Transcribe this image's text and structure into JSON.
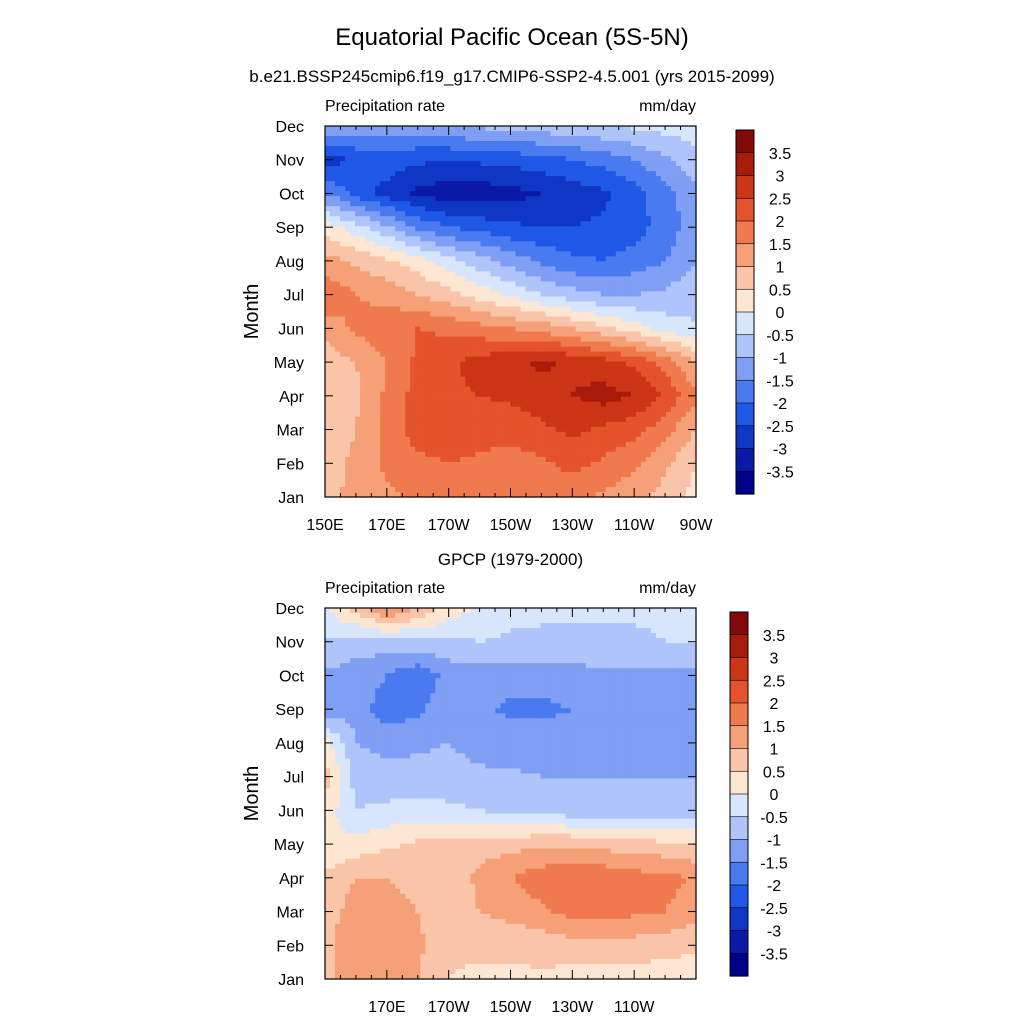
{
  "figure": {
    "title": "Equatorial Pacific Ocean (5S-5N)",
    "subtitle": "b.e21.BSSP245cmip6.f19_g17.CMIP6-SSP2-4.5.001 (yrs 2015-2099)"
  },
  "palette": [
    "#00008b",
    "#0a1aa6",
    "#0f36c4",
    "#1f58e6",
    "#4a7af0",
    "#7f9ff5",
    "#afc4fa",
    "#d8e6fd",
    "#fde6d2",
    "#f9c4a8",
    "#f5a077",
    "#f07a4d",
    "#e4532b",
    "#cc3515",
    "#a81b0a",
    "#830808"
  ],
  "colorbar_labels": [
    "3.5",
    "3",
    "2.5",
    "2",
    "1.5",
    "1",
    "0.5",
    "0",
    "-0.5",
    "-1",
    "-1.5",
    "-2",
    "-2.5",
    "-3",
    "-3.5"
  ],
  "chart_data": [
    {
      "type": "heatmap",
      "name": "model",
      "title": "",
      "left_label": "Precipitation rate",
      "right_label": "mm/day",
      "ylabel": "Month",
      "x": [
        150,
        160,
        170,
        180,
        190,
        200,
        210,
        220,
        230,
        240,
        250,
        260,
        270
      ],
      "x_ticks": [
        {
          "v": 150,
          "label": "150E"
        },
        {
          "v": 170,
          "label": "170E"
        },
        {
          "v": 190,
          "label": "170W"
        },
        {
          "v": 210,
          "label": "150W"
        },
        {
          "v": 230,
          "label": "130W"
        },
        {
          "v": 250,
          "label": "110W"
        },
        {
          "v": 270,
          "label": "90W"
        }
      ],
      "y_ticks": [
        "Jan",
        "Feb",
        "Mar",
        "Apr",
        "May",
        "Jun",
        "Jul",
        "Aug",
        "Sep",
        "Oct",
        "Nov",
        "Dec"
      ],
      "levels": [
        -3.5,
        -3,
        -2.5,
        -2,
        -1.5,
        -1,
        -0.5,
        0,
        0.5,
        1,
        1.5,
        2,
        2.5,
        3,
        3.5
      ],
      "z": [
        [
          0.9,
          1.1,
          1.4,
          1.6,
          1.7,
          1.6,
          1.5,
          1.6,
          1.6,
          1.4,
          1.2,
          0.8,
          0.3
        ],
        [
          0.8,
          1.1,
          1.6,
          1.9,
          2.0,
          1.9,
          1.8,
          1.9,
          2.2,
          1.9,
          1.6,
          1.1,
          0.5
        ],
        [
          0.7,
          1.0,
          1.7,
          2.2,
          2.3,
          2.2,
          2.2,
          2.4,
          2.6,
          2.4,
          2.2,
          1.7,
          1.0
        ],
        [
          0.6,
          0.9,
          1.6,
          2.2,
          2.4,
          2.5,
          2.6,
          2.8,
          3.0,
          3.2,
          3.0,
          2.4,
          1.6
        ],
        [
          0.7,
          1.0,
          1.5,
          2.1,
          2.4,
          2.7,
          2.9,
          3.1,
          2.9,
          2.7,
          2.4,
          1.8,
          1.0
        ],
        [
          1.2,
          1.6,
          1.9,
          2.0,
          1.9,
          1.7,
          1.5,
          1.3,
          1.0,
          0.6,
          0.2,
          -0.2,
          -0.5
        ],
        [
          1.9,
          1.5,
          1.3,
          1.0,
          0.7,
          0.3,
          -0.1,
          -0.5,
          -0.8,
          -1.0,
          -1.0,
          -0.9,
          -0.6
        ],
        [
          1.2,
          0.9,
          0.6,
          0.2,
          -0.3,
          -0.8,
          -1.2,
          -1.6,
          -1.9,
          -2.0,
          -1.8,
          -1.5,
          -1.0
        ],
        [
          0.3,
          -0.3,
          -0.9,
          -1.6,
          -2.0,
          -2.2,
          -2.4,
          -2.5,
          -2.5,
          -2.4,
          -2.2,
          -1.8,
          -1.2
        ],
        [
          -1.5,
          -2.2,
          -2.7,
          -3.1,
          -3.3,
          -3.3,
          -3.2,
          -3.0,
          -2.8,
          -2.6,
          -2.2,
          -1.7,
          -1.1
        ],
        [
          -2.8,
          -2.4,
          -2.2,
          -2.4,
          -2.5,
          -2.4,
          -2.3,
          -2.2,
          -2.0,
          -1.8,
          -1.5,
          -1.1,
          -0.7
        ],
        [
          -1.0,
          -1.2,
          -1.3,
          -1.2,
          -1.0,
          -0.9,
          -0.8,
          -0.7,
          -0.6,
          -0.5,
          -0.4,
          -0.3,
          -0.2
        ]
      ]
    },
    {
      "type": "heatmap",
      "name": "obs",
      "title": "GPCP (1979-2000)",
      "left_label": "Precipitation rate",
      "right_label": "mm/day",
      "ylabel": "Month",
      "x": [
        150,
        160,
        170,
        180,
        190,
        200,
        210,
        220,
        230,
        240,
        250,
        260,
        270
      ],
      "x_ticks": [
        {
          "v": 170,
          "label": "170E"
        },
        {
          "v": 190,
          "label": "170W"
        },
        {
          "v": 210,
          "label": "150W"
        },
        {
          "v": 230,
          "label": "130W"
        },
        {
          "v": 250,
          "label": "110W"
        }
      ],
      "y_ticks": [
        "Jan",
        "Feb",
        "Mar",
        "Apr",
        "May",
        "Jun",
        "Jul",
        "Aug",
        "Sep",
        "Oct",
        "Nov",
        "Dec"
      ],
      "levels": [
        -3.5,
        -3,
        -2.5,
        -2,
        -1.5,
        -1,
        -0.5,
        0,
        0.5,
        1,
        1.5,
        2,
        2.5,
        3,
        3.5
      ],
      "z": [
        [
          0.9,
          1.3,
          1.4,
          1.0,
          0.5,
          0.4,
          0.4,
          0.4,
          0.3,
          0.3,
          0.3,
          0.2,
          0.2
        ],
        [
          0.9,
          1.3,
          1.3,
          1.1,
          0.6,
          0.6,
          0.6,
          0.7,
          0.8,
          0.8,
          0.8,
          0.7,
          0.6
        ],
        [
          0.8,
          1.2,
          1.2,
          1.0,
          0.8,
          1.0,
          1.2,
          1.4,
          1.7,
          1.7,
          1.6,
          1.5,
          1.2
        ],
        [
          0.6,
          1.0,
          1.0,
          0.8,
          0.7,
          1.1,
          1.5,
          1.8,
          2.0,
          1.9,
          1.7,
          1.7,
          1.4
        ],
        [
          0.0,
          0.2,
          0.4,
          0.6,
          0.7,
          0.8,
          0.8,
          0.9,
          0.9,
          0.8,
          0.7,
          0.6,
          0.5
        ],
        [
          0.3,
          -0.5,
          -0.4,
          -0.3,
          -0.4,
          -0.5,
          -0.6,
          -0.7,
          -0.8,
          -0.9,
          -0.9,
          -0.9,
          -0.8
        ],
        [
          0.8,
          -0.7,
          -0.8,
          -0.8,
          -0.8,
          -0.9,
          -0.9,
          -1.0,
          -1.0,
          -1.0,
          -1.0,
          -1.0,
          -1.0
        ],
        [
          0.2,
          -1.0,
          -1.2,
          -1.1,
          -1.0,
          -1.2,
          -1.3,
          -1.3,
          -1.3,
          -1.2,
          -1.1,
          -1.1,
          -1.1
        ],
        [
          -1.3,
          -1.2,
          -1.8,
          -1.6,
          -1.2,
          -1.4,
          -1.6,
          -1.6,
          -1.5,
          -1.3,
          -1.2,
          -1.3,
          -1.3
        ],
        [
          -1.1,
          -1.2,
          -1.5,
          -1.9,
          -1.3,
          -1.2,
          -1.3,
          -1.3,
          -1.2,
          -1.1,
          -1.1,
          -1.2,
          -1.2
        ],
        [
          -0.5,
          -0.8,
          -0.7,
          -0.6,
          -0.6,
          -0.5,
          -0.6,
          -0.6,
          -0.6,
          -0.6,
          -0.6,
          -0.5,
          -0.5
        ],
        [
          -0.1,
          0.8,
          1.6,
          1.0,
          0.3,
          -0.1,
          -0.3,
          -0.4,
          -0.4,
          -0.4,
          -0.4,
          -0.4,
          -0.3
        ]
      ]
    }
  ]
}
